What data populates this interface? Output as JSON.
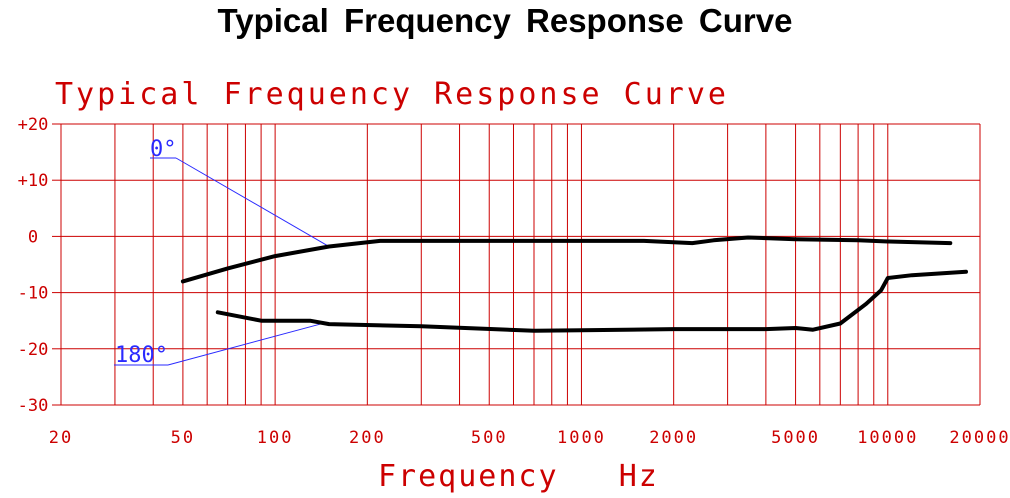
{
  "page_title": "Typical Frequency Response Curve",
  "colors": {
    "grid": "#cc0000",
    "curve": "#000000",
    "callout": "#2a2aff",
    "background": "#ffffff"
  },
  "chart_data": {
    "type": "line",
    "title": "Typical Frequency Response Curve",
    "xlabel": "Frequency Hz",
    "ylabel": "",
    "x_scale": "log",
    "xlim": [
      20,
      20000
    ],
    "ylim": [
      -30,
      20
    ],
    "grid": true,
    "x_ticks": [
      20,
      50,
      100,
      200,
      500,
      1000,
      2000,
      5000,
      10000,
      20000
    ],
    "x_tick_labels": [
      "20",
      "50",
      "100",
      "200",
      "500",
      "1000",
      "2000",
      "5000",
      "10000",
      "20000"
    ],
    "y_ticks": [
      20,
      10,
      0,
      -10,
      -20,
      -30
    ],
    "y_tick_labels": [
      "+20",
      "+10",
      "0",
      "-10",
      "-20",
      "-30"
    ],
    "series": [
      {
        "name": "0°",
        "x": [
          50,
          70,
          100,
          150,
          220,
          500,
          1000,
          1600,
          2300,
          2700,
          3500,
          5000,
          8000,
          10000,
          16000
        ],
        "y": [
          -8,
          -5.7,
          -3.5,
          -1.8,
          -0.8,
          -0.8,
          -0.8,
          -0.8,
          -1.2,
          -0.7,
          -0.2,
          -0.5,
          -0.7,
          -0.9,
          -1.2
        ]
      },
      {
        "name": "180°",
        "x": [
          65,
          90,
          130,
          150,
          300,
          700,
          1000,
          2000,
          4000,
          5000,
          5700,
          7000,
          8500,
          9500,
          10000,
          12000,
          18000
        ],
        "y": [
          -13.5,
          -15,
          -15,
          -15.6,
          -16,
          -16.8,
          -16.7,
          -16.5,
          -16.5,
          -16.3,
          -16.6,
          -15.5,
          -12,
          -9.6,
          -7.4,
          -6.9,
          -6.3
        ]
      }
    ]
  }
}
